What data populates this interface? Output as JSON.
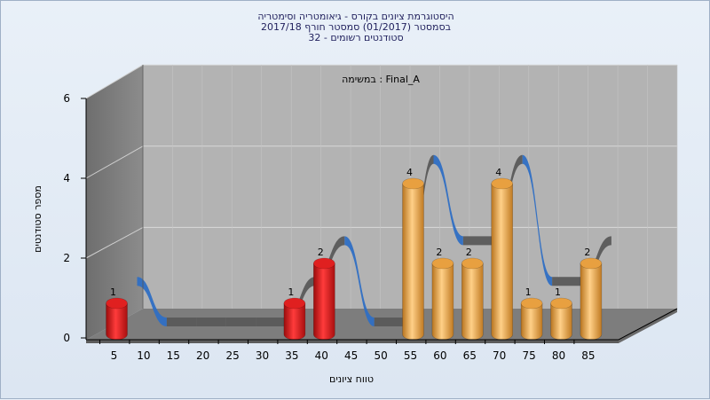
{
  "title_lines": [
    "היסטוגרמת ציונים בקורס - גיאומטריה וסימטריה",
    "בסמסטר  (01/2017)  סמסטר חורף 2017/18",
    "סטודנטים רשומים - 32"
  ],
  "annotation": "במשימה : Final_A",
  "chart_data": {
    "type": "bar",
    "title": "היסטוגרמת ציונים בקורס - גיאומטריה וסימטריה",
    "xlabel": "טווח ציונים",
    "ylabel": "מספר סטודנטים",
    "categories": [
      "5",
      "10",
      "15",
      "20",
      "25",
      "30",
      "35",
      "40",
      "45",
      "50",
      "55",
      "60",
      "65",
      "70",
      "75",
      "80",
      "85"
    ],
    "y_ticks": [
      "0",
      "2",
      "4",
      "6"
    ],
    "ylim": [
      0,
      6
    ],
    "series": [
      {
        "values": [
          1,
          0,
          0,
          0,
          0,
          0,
          1,
          2,
          0,
          0,
          4,
          2,
          2,
          4,
          1,
          1,
          2
        ],
        "colors": [
          "#e02020",
          "#e02020",
          "#e02020",
          "#e02020",
          "#e02020",
          "#e02020",
          "#e02020",
          "#e02020",
          "#e8a040",
          "#e8a040",
          "#e8a040",
          "#e8a040",
          "#e8a040",
          "#e8a040",
          "#e8a040",
          "#e8a040",
          "#e8a040"
        ]
      }
    ],
    "curve_colors": {
      "below": "#5a5a5a",
      "above": "#2f6fc4"
    },
    "floor_color": "#7d7d7d",
    "wall_color": "#b3b3b3",
    "grid": true
  }
}
